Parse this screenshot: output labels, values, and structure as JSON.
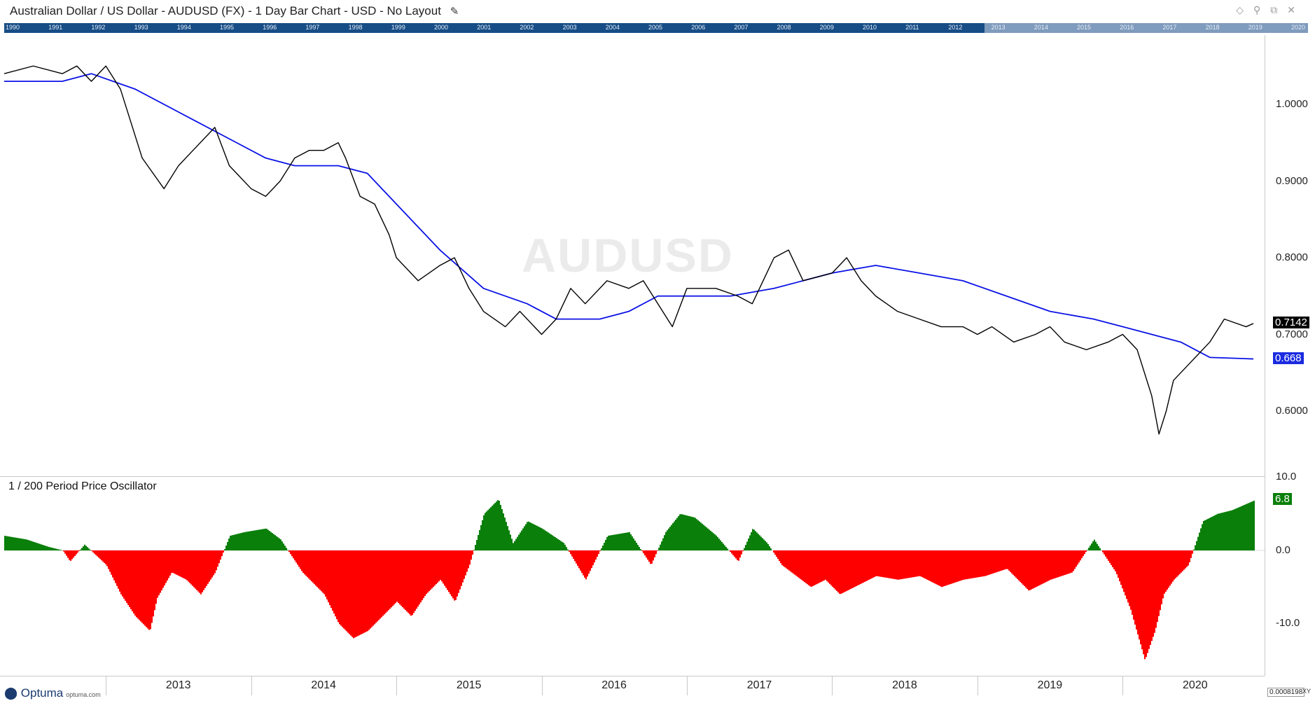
{
  "window": {
    "title": "Australian Dollar / US Dollar - AUDUSD (FX) - 1 Day Bar Chart - USD - No Layout",
    "title_icon": "pencil-icon",
    "icons": [
      "diamond-icon",
      "pin-icon",
      "restore-icon",
      "close-icon"
    ]
  },
  "overview": {
    "years": [
      "1990",
      "1991",
      "1992",
      "1993",
      "1994",
      "1995",
      "1996",
      "1997",
      "1998",
      "1999",
      "2000",
      "2001",
      "2002",
      "2003",
      "2004",
      "2005",
      "2006",
      "2007",
      "2008",
      "2009",
      "2010",
      "2011",
      "2012",
      "2013",
      "2014",
      "2015",
      "2016",
      "2017",
      "2018",
      "2019",
      "2020"
    ]
  },
  "watermark": "AUDUSD",
  "price_panel": {
    "y_ticks": [
      "1.0000",
      "0.9000",
      "0.8000",
      "0.7000",
      "0.6000"
    ],
    "last_price_label": "0.7142",
    "ma_label": "0.668"
  },
  "oscillator_panel": {
    "title": "1 / 200 Period Price Oscillator",
    "y_ticks": [
      "10.0",
      "0.0",
      "-10.0"
    ],
    "last_value_label": "6.8"
  },
  "x_axis": {
    "labels": [
      "2013",
      "2014",
      "2015",
      "2016",
      "2017",
      "2018",
      "2019",
      "2020"
    ]
  },
  "footer": {
    "logo_text": "Optuma",
    "logo_url": "optuma.com",
    "corner_value": "0.0008198",
    "corner_xy": "XY"
  },
  "colors": {
    "price": "#000000",
    "moving_average": "#0a12e6",
    "osc_positive": "#0a7f0a",
    "osc_negative": "#ff0000",
    "ma_badge": "#1a2be0",
    "last_badge": "#000000"
  },
  "chart_data": [
    {
      "type": "line",
      "title": "AUDUSD",
      "ylim": [
        0.53,
        1.08
      ],
      "series": [
        {
          "name": "AUDUSD",
          "x": [
            2012.3,
            2012.5,
            2012.7,
            2012.8,
            2012.9,
            2013.0,
            2013.1,
            2013.25,
            2013.4,
            2013.5,
            2013.6,
            2013.75,
            2013.85,
            2014.0,
            2014.1,
            2014.2,
            2014.3,
            2014.4,
            2014.5,
            2014.6,
            2014.65,
            2014.75,
            2014.85,
            2014.95,
            2015.0,
            2015.15,
            2015.3,
            2015.4,
            2015.5,
            2015.6,
            2015.75,
            2015.85,
            2016.0,
            2016.1,
            2016.2,
            2016.3,
            2016.45,
            2016.6,
            2016.7,
            2016.8,
            2016.9,
            2017.0,
            2017.2,
            2017.35,
            2017.45,
            2017.6,
            2017.7,
            2017.8,
            2018.0,
            2018.1,
            2018.2,
            2018.3,
            2018.45,
            2018.6,
            2018.75,
            2018.9,
            2019.0,
            2019.1,
            2019.25,
            2019.4,
            2019.5,
            2019.6,
            2019.75,
            2019.9,
            2020.0,
            2020.1,
            2020.2,
            2020.25,
            2020.3,
            2020.35,
            2020.45,
            2020.6,
            2020.7,
            2020.85,
            2020.9
          ],
          "values": [
            1.04,
            1.05,
            1.04,
            1.05,
            1.03,
            1.05,
            1.02,
            0.93,
            0.89,
            0.92,
            0.94,
            0.97,
            0.92,
            0.89,
            0.88,
            0.9,
            0.93,
            0.94,
            0.94,
            0.95,
            0.93,
            0.88,
            0.87,
            0.83,
            0.8,
            0.77,
            0.79,
            0.8,
            0.76,
            0.73,
            0.71,
            0.73,
            0.7,
            0.72,
            0.76,
            0.74,
            0.77,
            0.76,
            0.77,
            0.74,
            0.71,
            0.76,
            0.76,
            0.75,
            0.74,
            0.8,
            0.81,
            0.77,
            0.78,
            0.8,
            0.77,
            0.75,
            0.73,
            0.72,
            0.71,
            0.71,
            0.7,
            0.71,
            0.69,
            0.7,
            0.71,
            0.69,
            0.68,
            0.69,
            0.7,
            0.68,
            0.62,
            0.57,
            0.6,
            0.64,
            0.66,
            0.69,
            0.72,
            0.71,
            0.7142
          ]
        },
        {
          "name": "200 MA",
          "x": [
            2012.3,
            2012.7,
            2012.9,
            2013.2,
            2013.6,
            2013.9,
            2014.1,
            2014.3,
            2014.6,
            2014.8,
            2015.0,
            2015.3,
            2015.6,
            2015.9,
            2016.1,
            2016.4,
            2016.6,
            2016.8,
            2017.0,
            2017.3,
            2017.6,
            2017.8,
            2018.0,
            2018.3,
            2018.6,
            2018.9,
            2019.2,
            2019.5,
            2019.8,
            2020.0,
            2020.2,
            2020.4,
            2020.6,
            2020.9
          ],
          "values": [
            1.03,
            1.03,
            1.04,
            1.02,
            0.98,
            0.95,
            0.93,
            0.92,
            0.92,
            0.91,
            0.87,
            0.81,
            0.76,
            0.74,
            0.72,
            0.72,
            0.73,
            0.75,
            0.75,
            0.75,
            0.76,
            0.77,
            0.78,
            0.79,
            0.78,
            0.77,
            0.75,
            0.73,
            0.72,
            0.71,
            0.7,
            0.69,
            0.67,
            0.668
          ]
        }
      ]
    },
    {
      "type": "area",
      "title": "1 / 200 Period Price Oscillator",
      "ylim": [
        -17,
        10
      ],
      "series": [
        {
          "name": "1 / 200 Period Price Oscillator",
          "x": [
            2012.3,
            2012.45,
            2012.6,
            2012.7,
            2012.75,
            2012.85,
            2013.0,
            2013.1,
            2013.2,
            2013.3,
            2013.35,
            2013.45,
            2013.55,
            2013.65,
            2013.75,
            2013.85,
            2013.95,
            2014.1,
            2014.2,
            2014.35,
            2014.5,
            2014.6,
            2014.7,
            2014.8,
            2014.9,
            2015.0,
            2015.1,
            2015.2,
            2015.3,
            2015.4,
            2015.5,
            2015.6,
            2015.7,
            2015.8,
            2015.9,
            2016.0,
            2016.15,
            2016.3,
            2016.45,
            2016.6,
            2016.7,
            2016.75,
            2016.85,
            2016.95,
            2017.05,
            2017.2,
            2017.35,
            2017.45,
            2017.55,
            2017.65,
            2017.75,
            2017.85,
            2017.95,
            2018.05,
            2018.15,
            2018.3,
            2018.45,
            2018.6,
            2018.75,
            2018.9,
            2019.05,
            2019.2,
            2019.35,
            2019.5,
            2019.65,
            2019.8,
            2019.95,
            2020.05,
            2020.15,
            2020.22,
            2020.28,
            2020.35,
            2020.45,
            2020.55,
            2020.65,
            2020.75,
            2020.9
          ],
          "values": [
            2.0,
            1.5,
            0.5,
            0.0,
            -1.5,
            0.8,
            -2.0,
            -6.0,
            -9.0,
            -11.0,
            -6.5,
            -3.0,
            -4.0,
            -6.0,
            -3.0,
            2.0,
            2.5,
            3.0,
            1.5,
            -3.0,
            -6.0,
            -10.0,
            -12.0,
            -11.0,
            -9.0,
            -7.0,
            -9.0,
            -6.0,
            -4.0,
            -7.0,
            -2.0,
            5.0,
            7.0,
            1.0,
            4.0,
            3.0,
            1.0,
            -4.0,
            2.0,
            2.5,
            -0.5,
            -2.0,
            2.5,
            5.0,
            4.5,
            2.0,
            -1.5,
            3.0,
            1.0,
            -2.0,
            -3.5,
            -5.0,
            -4.0,
            -6.0,
            -5.0,
            -3.5,
            -4.0,
            -3.5,
            -5.0,
            -4.0,
            -3.5,
            -2.5,
            -5.5,
            -4.0,
            -3.0,
            1.5,
            -3.0,
            -8.0,
            -15.0,
            -11.0,
            -6.0,
            -4.0,
            -2.0,
            4.0,
            5.0,
            5.5,
            6.8
          ]
        }
      ]
    }
  ]
}
